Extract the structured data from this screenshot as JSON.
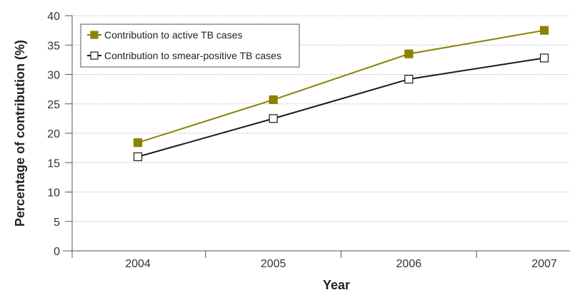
{
  "chart_data": {
    "type": "line",
    "title": "",
    "xlabel": "Year",
    "ylabel": "Percentage of contribution (%)",
    "categories": [
      "2004",
      "2005",
      "2006",
      "2007"
    ],
    "ylim": [
      0,
      40
    ],
    "yticks": [
      0,
      5,
      10,
      15,
      20,
      25,
      30,
      35,
      40
    ],
    "grid": "horizontal-dotted",
    "legend_position": "top-left",
    "series": [
      {
        "name": "Contribution to active TB cases",
        "values": [
          18.4,
          25.7,
          33.5,
          37.5
        ],
        "color": "#8a8200",
        "marker": "filled-square"
      },
      {
        "name": "Contribution to smear-positive TB cases",
        "values": [
          16.0,
          22.5,
          29.2,
          32.8
        ],
        "color": "#1a1a1a",
        "marker": "open-square"
      }
    ]
  }
}
